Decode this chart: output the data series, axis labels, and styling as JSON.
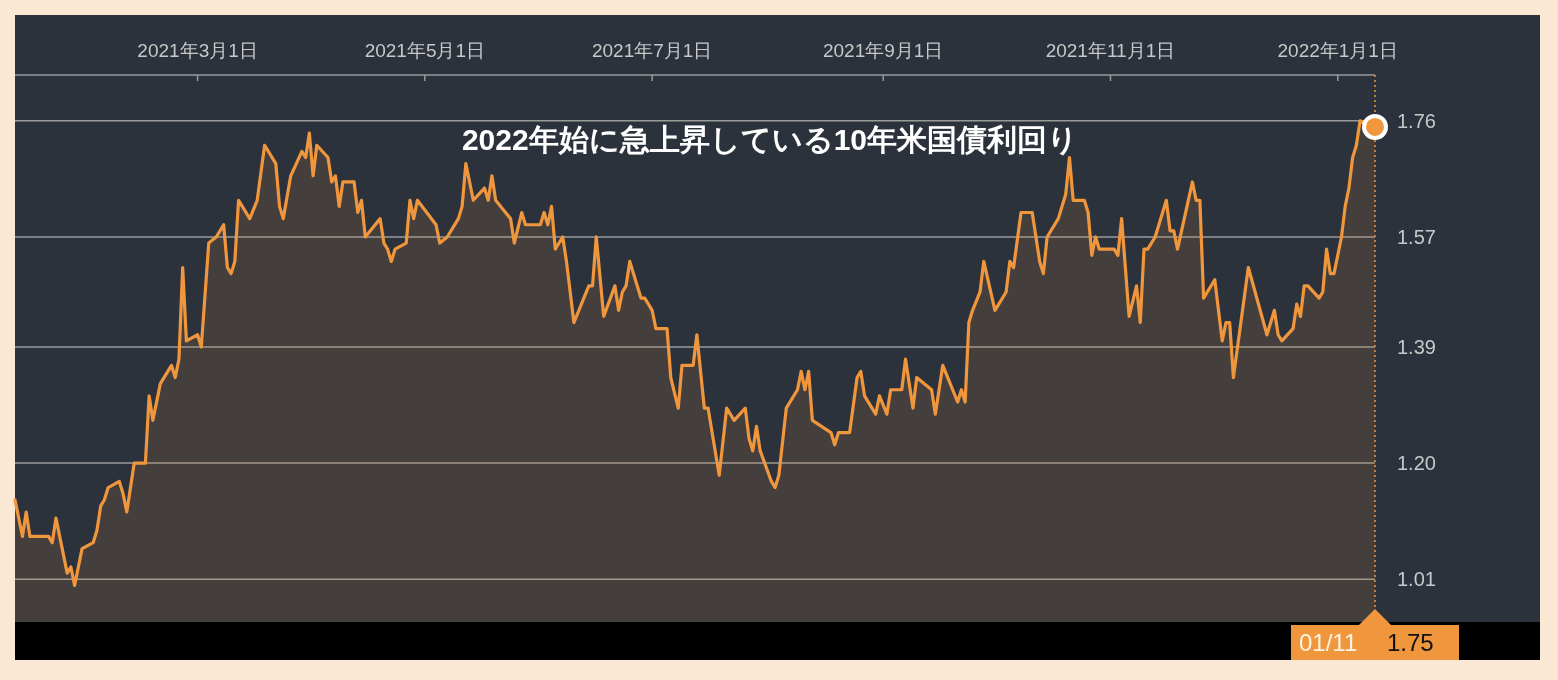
{
  "chart_data": {
    "type": "area",
    "title": "2022年始に急上昇している10年米国債利回り",
    "x": [
      "2021-01-11",
      "2021-01-13",
      "2021-01-14",
      "2021-01-15",
      "2021-01-18",
      "2021-01-20",
      "2021-01-21",
      "2021-01-22",
      "2021-01-25",
      "2021-01-26",
      "2021-01-27",
      "2021-01-29",
      "2021-02-01",
      "2021-02-02",
      "2021-02-03",
      "2021-02-04",
      "2021-02-05",
      "2021-02-08",
      "2021-02-09",
      "2021-02-10",
      "2021-02-12",
      "2021-02-15",
      "2021-02-16",
      "2021-02-17",
      "2021-02-19",
      "2021-02-22",
      "2021-02-23",
      "2021-02-24",
      "2021-02-25",
      "2021-02-26",
      "2021-03-01",
      "2021-03-02",
      "2021-03-04",
      "2021-03-06",
      "2021-03-08",
      "2021-03-09",
      "2021-03-10",
      "2021-03-11",
      "2021-03-12",
      "2021-03-15",
      "2021-03-17",
      "2021-03-19",
      "2021-03-22",
      "2021-03-23",
      "2021-03-24",
      "2021-03-26",
      "2021-03-29",
      "2021-03-30",
      "2021-03-31",
      "2021-04-01",
      "2021-04-02",
      "2021-04-05",
      "2021-04-06",
      "2021-04-07",
      "2021-04-08",
      "2021-04-09",
      "2021-04-12",
      "2021-04-13",
      "2021-04-14",
      "2021-04-15",
      "2021-04-19",
      "2021-04-20",
      "2021-04-21",
      "2021-04-22",
      "2021-04-23",
      "2021-04-26",
      "2021-04-27",
      "2021-04-28",
      "2021-04-29",
      "2021-05-04",
      "2021-05-05",
      "2021-05-07",
      "2021-05-10",
      "2021-05-11",
      "2021-05-12",
      "2021-05-14",
      "2021-05-17",
      "2021-05-18",
      "2021-05-19",
      "2021-05-20",
      "2021-05-24",
      "2021-05-25",
      "2021-05-27",
      "2021-05-28",
      "2021-06-01",
      "2021-06-02",
      "2021-06-03",
      "2021-06-04",
      "2021-06-05",
      "2021-06-07",
      "2021-06-08",
      "2021-06-10",
      "2021-06-14",
      "2021-06-15",
      "2021-06-16",
      "2021-06-18",
      "2021-06-21",
      "2021-06-22",
      "2021-06-23",
      "2021-06-24",
      "2021-06-25",
      "2021-06-28",
      "2021-06-29",
      "2021-06-30",
      "2021-07-01",
      "2021-07-02",
      "2021-07-05",
      "2021-07-06",
      "2021-07-08",
      "2021-07-09",
      "2021-07-12",
      "2021-07-13",
      "2021-07-15",
      "2021-07-16",
      "2021-07-19",
      "2021-07-21",
      "2021-07-23",
      "2021-07-26",
      "2021-07-27",
      "2021-07-28",
      "2021-07-29",
      "2021-07-30",
      "2021-08-02",
      "2021-08-03",
      "2021-08-04",
      "2021-08-06",
      "2021-08-09",
      "2021-08-10",
      "2021-08-11",
      "2021-08-12",
      "2021-08-13",
      "2021-08-18",
      "2021-08-19",
      "2021-08-20",
      "2021-08-23",
      "2021-08-25",
      "2021-08-26",
      "2021-08-27",
      "2021-08-30",
      "2021-08-31",
      "2021-09-02",
      "2021-09-03",
      "2021-09-06",
      "2021-09-07",
      "2021-09-09",
      "2021-09-10",
      "2021-09-14",
      "2021-09-15",
      "2021-09-17",
      "2021-09-21",
      "2021-09-22",
      "2021-09-23",
      "2021-09-24",
      "2021-09-25",
      "2021-09-27",
      "2021-09-28",
      "2021-10-01",
      "2021-10-04",
      "2021-10-05",
      "2021-10-06",
      "2021-10-08",
      "2021-10-11",
      "2021-10-13",
      "2021-10-14",
      "2021-10-15",
      "2021-10-18",
      "2021-10-20",
      "2021-10-21",
      "2021-10-22",
      "2021-10-25",
      "2021-10-26",
      "2021-10-27",
      "2021-10-28",
      "2021-10-29",
      "2021-11-02",
      "2021-11-03",
      "2021-11-04",
      "2021-11-06",
      "2021-11-08",
      "2021-11-09",
      "2021-11-10",
      "2021-11-11",
      "2021-11-13",
      "2021-11-16",
      "2021-11-17",
      "2021-11-18",
      "2021-11-19",
      "2021-11-23",
      "2021-11-24",
      "2021-11-25",
      "2021-11-26",
      "2021-11-29",
      "2021-12-01",
      "2021-12-02",
      "2021-12-03",
      "2021-12-04",
      "2021-12-08",
      "2021-12-13",
      "2021-12-15",
      "2021-12-16",
      "2021-12-17",
      "2021-12-20",
      "2021-12-21",
      "2021-12-22",
      "2021-12-23",
      "2021-12-24",
      "2021-12-27",
      "2021-12-28",
      "2021-12-29",
      "2021-12-30",
      "2021-12-31",
      "2022-01-02",
      "2022-01-03",
      "2022-01-04",
      "2022-01-05",
      "2022-01-06",
      "2022-01-07",
      "2022-01-11"
    ],
    "series": [
      {
        "color": "#f0963c",
        "values": [
          1.14,
          1.08,
          1.12,
          1.08,
          1.08,
          1.08,
          1.07,
          1.11,
          1.02,
          1.03,
          1.0,
          1.06,
          1.07,
          1.09,
          1.13,
          1.14,
          1.16,
          1.17,
          1.15,
          1.12,
          1.2,
          1.2,
          1.31,
          1.27,
          1.33,
          1.36,
          1.34,
          1.37,
          1.52,
          1.4,
          1.41,
          1.39,
          1.56,
          1.57,
          1.59,
          1.52,
          1.51,
          1.53,
          1.63,
          1.6,
          1.63,
          1.72,
          1.69,
          1.62,
          1.6,
          1.67,
          1.71,
          1.7,
          1.74,
          1.67,
          1.72,
          1.7,
          1.66,
          1.67,
          1.62,
          1.66,
          1.66,
          1.61,
          1.63,
          1.57,
          1.6,
          1.56,
          1.55,
          1.53,
          1.55,
          1.56,
          1.63,
          1.6,
          1.63,
          1.59,
          1.56,
          1.57,
          1.6,
          1.62,
          1.69,
          1.63,
          1.65,
          1.63,
          1.67,
          1.63,
          1.6,
          1.56,
          1.61,
          1.59,
          1.59,
          1.61,
          1.59,
          1.62,
          1.55,
          1.57,
          1.53,
          1.43,
          1.49,
          1.49,
          1.57,
          1.44,
          1.49,
          1.45,
          1.48,
          1.49,
          1.53,
          1.47,
          1.47,
          1.46,
          1.45,
          1.42,
          1.42,
          1.34,
          1.29,
          1.36,
          1.36,
          1.41,
          1.29,
          1.29,
          1.18,
          1.29,
          1.27,
          1.29,
          1.24,
          1.22,
          1.26,
          1.22,
          1.17,
          1.16,
          1.18,
          1.29,
          1.32,
          1.35,
          1.32,
          1.35,
          1.27,
          1.25,
          1.23,
          1.25,
          1.25,
          1.34,
          1.35,
          1.31,
          1.28,
          1.31,
          1.28,
          1.32,
          1.32,
          1.37,
          1.29,
          1.34,
          1.32,
          1.28,
          1.36,
          1.3,
          1.32,
          1.3,
          1.43,
          1.45,
          1.48,
          1.53,
          1.45,
          1.48,
          1.53,
          1.52,
          1.61,
          1.61,
          1.53,
          1.51,
          1.57,
          1.6,
          1.64,
          1.7,
          1.63,
          1.63,
          1.61,
          1.54,
          1.57,
          1.55,
          1.55,
          1.54,
          1.6,
          1.44,
          1.49,
          1.43,
          1.55,
          1.55,
          1.57,
          1.63,
          1.58,
          1.58,
          1.55,
          1.66,
          1.63,
          1.63,
          1.47,
          1.5,
          1.4,
          1.43,
          1.43,
          1.34,
          1.52,
          1.41,
          1.45,
          1.41,
          1.4,
          1.42,
          1.46,
          1.44,
          1.49,
          1.49,
          1.47,
          1.48,
          1.55,
          1.51,
          1.51,
          1.57,
          1.62,
          1.65,
          1.7,
          1.72,
          1.76,
          1.75
        ]
      }
    ],
    "xlim": [
      "2021-01-11",
      "2022-01-11"
    ],
    "xticks": [
      {
        "value": "2021-03-01",
        "label": "2021年3月1日"
      },
      {
        "value": "2021-05-01",
        "label": "2021年5月1日"
      },
      {
        "value": "2021-07-01",
        "label": "2021年7月1日"
      },
      {
        "value": "2021-09-01",
        "label": "2021年9月1日"
      },
      {
        "value": "2021-11-01",
        "label": "2021年11月1日"
      },
      {
        "value": "2022-01-01",
        "label": "2022年1月1日"
      }
    ],
    "ylim": [
      0.94,
      1.835
    ],
    "yticks": [
      1.01,
      {
        "value": 1.2,
        "label": "1.20"
      },
      1.39,
      1.57,
      1.76
    ],
    "grid": "y",
    "ref_lines": [
      {
        "axis": "x",
        "value": "2022-01-11",
        "color": "#f0963c",
        "line_style": "dotted"
      }
    ],
    "annotations": [
      "01/11",
      "1.75"
    ]
  }
}
